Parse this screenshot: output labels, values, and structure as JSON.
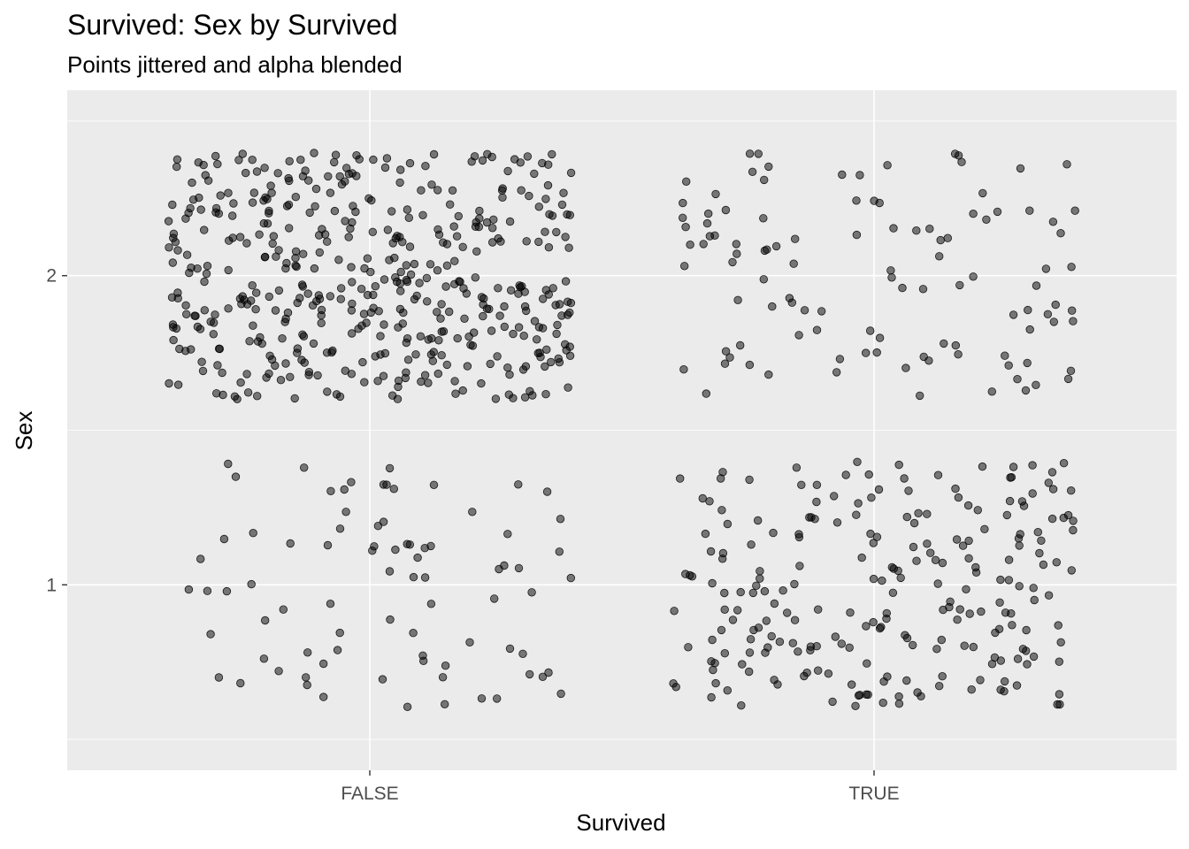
{
  "chart_data": {
    "type": "scatter",
    "title": "Survived: Sex by Survived",
    "subtitle": "Points jittered and alpha blended",
    "xlabel": "Survived",
    "ylabel": "Sex",
    "x_categories": [
      "FALSE",
      "TRUE"
    ],
    "y_ticks": [
      1,
      2
    ],
    "ylim": [
      0.4,
      2.6
    ],
    "jitter": {
      "x_width": 0.4,
      "y_height": 0.4
    },
    "point_alpha": 0.5,
    "point_color": "#000000",
    "panel_background": "#ebebeb",
    "grid_color": "#ffffff",
    "grid": true,
    "legend": "none",
    "counts": [
      {
        "survived": "FALSE",
        "sex": 1,
        "n": 81
      },
      {
        "survived": "FALSE",
        "sex": 2,
        "n": 468
      },
      {
        "survived": "TRUE",
        "sex": 1,
        "n": 233
      },
      {
        "survived": "TRUE",
        "sex": 2,
        "n": 109
      }
    ]
  }
}
